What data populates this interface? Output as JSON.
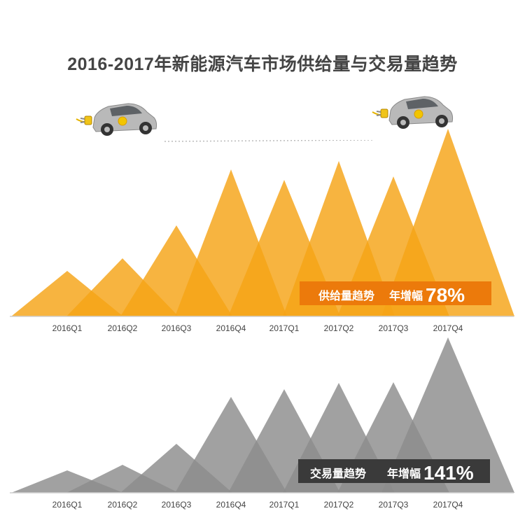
{
  "title": "2016-2017年新能源汽车市场供给量与交易量趋势",
  "colors": {
    "supply": "#f5a316",
    "trade": "#8c8c8c",
    "supply_banner": "#ec7a0b",
    "trade_banner": "#3a3a3a",
    "axis": "#cfcfcf"
  },
  "chart_data": [
    {
      "type": "area",
      "name": "supply",
      "categories": [
        "2016Q1",
        "2016Q2",
        "2016Q3",
        "2016Q4",
        "2017Q1",
        "2017Q2",
        "2017Q3",
        "2017Q4"
      ],
      "values": [
        65,
        83,
        130,
        210,
        195,
        222,
        200,
        268
      ],
      "banner": {
        "label": "供给量趋势",
        "growth_prefix": "年增幅",
        "growth_value": "78%"
      }
    },
    {
      "type": "area",
      "name": "trade",
      "categories": [
        "2016Q1",
        "2016Q2",
        "2016Q3",
        "2016Q4",
        "2017Q1",
        "2017Q2",
        "2017Q3",
        "2017Q4"
      ],
      "values": [
        32,
        40,
        70,
        137,
        148,
        157,
        158,
        222
      ],
      "banner": {
        "label": "交易量趋势",
        "growth_prefix": "年增幅",
        "growth_value": "141%"
      }
    }
  ]
}
